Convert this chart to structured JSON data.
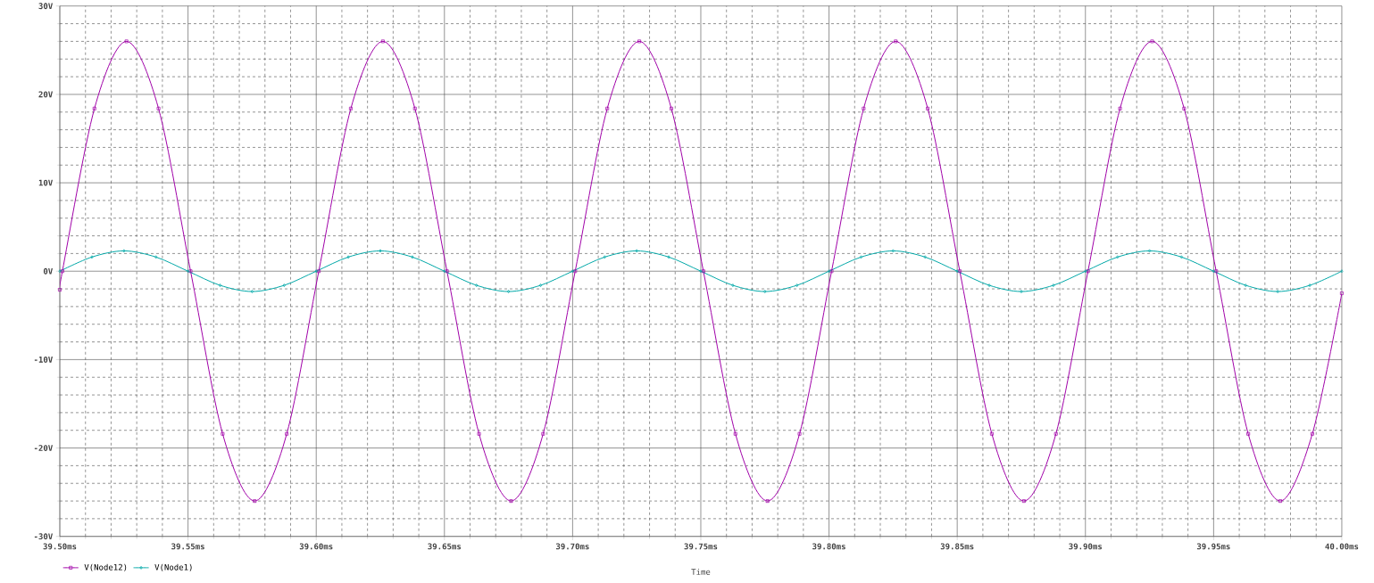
{
  "chart_data": {
    "type": "line",
    "xlabel": "Time",
    "xlim": [
      39.5,
      40.0
    ],
    "xticks": [
      {
        "value": 39.5,
        "label": "39.50ms"
      },
      {
        "value": 39.55,
        "label": "39.55ms"
      },
      {
        "value": 39.6,
        "label": "39.60ms"
      },
      {
        "value": 39.65,
        "label": "39.65ms"
      },
      {
        "value": 39.7,
        "label": "39.70ms"
      },
      {
        "value": 39.75,
        "label": "39.75ms"
      },
      {
        "value": 39.8,
        "label": "39.80ms"
      },
      {
        "value": 39.85,
        "label": "39.85ms"
      },
      {
        "value": 39.9,
        "label": "39.90ms"
      },
      {
        "value": 39.95,
        "label": "39.95ms"
      },
      {
        "value": 40.0,
        "label": "40.00ms"
      }
    ],
    "ylim": [
      -30,
      30
    ],
    "yticks": [
      {
        "value": -30,
        "label": "-30V"
      },
      {
        "value": -20,
        "label": "-20V"
      },
      {
        "value": -10,
        "label": "-10V"
      },
      {
        "value": 0,
        "label": "0V"
      },
      {
        "value": 10,
        "label": "10V"
      },
      {
        "value": 20,
        "label": "20V"
      },
      {
        "value": 30,
        "label": "30V"
      }
    ],
    "grid": true,
    "legend": "bottom left",
    "series": [
      {
        "name": "V(Node12)",
        "color": "#a000a8",
        "marker": "square",
        "x": [
          39.5,
          39.501,
          39.5135,
          39.526,
          39.5385,
          39.551,
          39.5635,
          39.576,
          39.5885,
          39.601,
          39.6135,
          39.626,
          39.6385,
          39.651,
          39.6635,
          39.676,
          39.6885,
          39.701,
          39.7135,
          39.726,
          39.7385,
          39.751,
          39.7635,
          39.776,
          39.7885,
          39.801,
          39.8135,
          39.826,
          39.8385,
          39.851,
          39.8635,
          39.876,
          39.8885,
          39.901,
          39.9135,
          39.926,
          39.9385,
          39.951,
          39.9635,
          39.976,
          39.9885,
          40.0
        ],
        "values": [
          -2.1,
          0,
          18.4,
          26,
          18.4,
          0,
          -18.4,
          -26,
          -18.4,
          0,
          18.4,
          26,
          18.4,
          0,
          -18.4,
          -26,
          -18.4,
          0,
          18.4,
          26,
          18.4,
          0,
          -18.4,
          -26,
          -18.4,
          0,
          18.4,
          26,
          18.4,
          0,
          -18.4,
          -26,
          -18.4,
          0,
          18.4,
          26,
          18.4,
          0,
          -18.4,
          -26,
          -18.4,
          -2.5
        ]
      },
      {
        "name": "V(Node1)",
        "color": "#00a8a8",
        "marker": "diamond",
        "x": [
          39.5,
          39.5125,
          39.525,
          39.5375,
          39.55,
          39.5625,
          39.575,
          39.5875,
          39.6,
          39.6125,
          39.625,
          39.6375,
          39.65,
          39.6625,
          39.675,
          39.6875,
          39.7,
          39.7125,
          39.725,
          39.7375,
          39.75,
          39.7625,
          39.775,
          39.7875,
          39.8,
          39.8125,
          39.825,
          39.8375,
          39.85,
          39.8625,
          39.875,
          39.8875,
          39.9,
          39.9125,
          39.925,
          39.9375,
          39.95,
          39.9625,
          39.975,
          39.9875,
          40.0
        ],
        "values": [
          0,
          1.6,
          2.3,
          1.6,
          0,
          -1.6,
          -2.3,
          -1.6,
          0,
          1.6,
          2.3,
          1.6,
          0,
          -1.6,
          -2.3,
          -1.6,
          0,
          1.6,
          2.3,
          1.6,
          0,
          -1.6,
          -2.3,
          -1.6,
          0,
          1.6,
          2.3,
          1.6,
          0,
          -1.6,
          -2.3,
          -1.6,
          0,
          1.6,
          2.3,
          1.6,
          0,
          -1.6,
          -2.3,
          -1.6,
          0
        ]
      }
    ]
  }
}
